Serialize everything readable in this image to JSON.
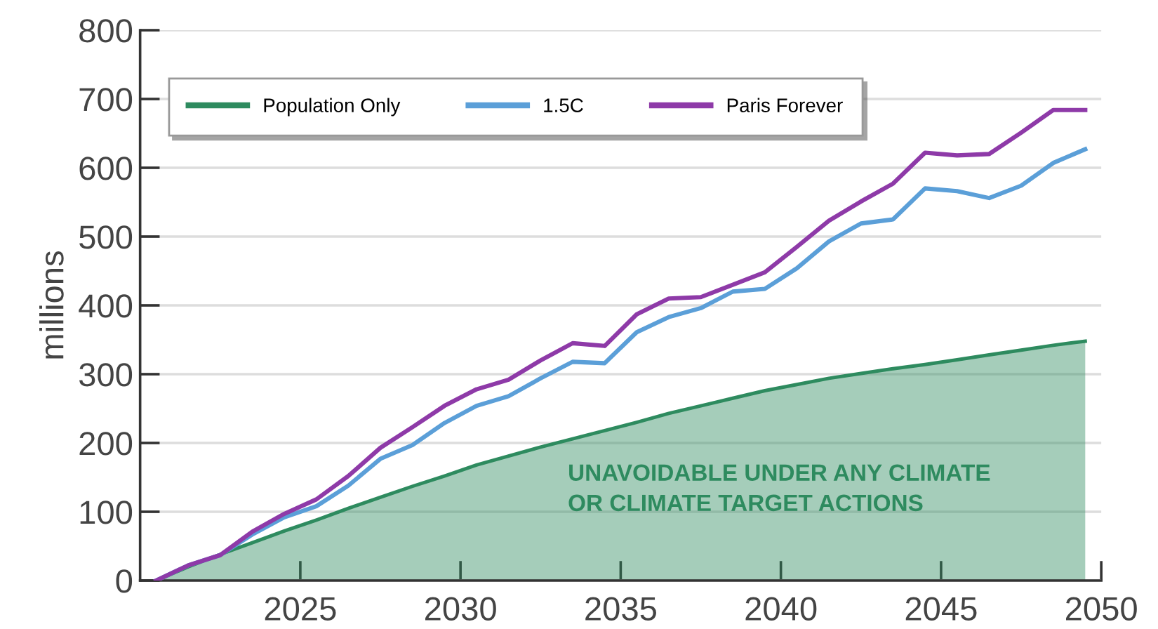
{
  "chart_data": {
    "type": "line",
    "ylabel": "millions",
    "x": [
      2020.5,
      2021.5,
      2022.5,
      2023.5,
      2024.5,
      2025.5,
      2026.5,
      2027.5,
      2028.5,
      2029.5,
      2030.5,
      2031.5,
      2032.5,
      2033.5,
      2034.5,
      2035.5,
      2036.5,
      2037.5,
      2038.5,
      2039.5,
      2040.5,
      2041.5,
      2042.5,
      2043.5,
      2044.5,
      2045.5,
      2046.5,
      2047.5,
      2048.5,
      2049.5
    ],
    "series": [
      {
        "name": "Population Only",
        "type": "area",
        "color": "#2e8b5f",
        "values": [
          0,
          20,
          38,
          55,
          72,
          88,
          105,
          121,
          137,
          152,
          168,
          181,
          194,
          206,
          218,
          230,
          243,
          254,
          265,
          276,
          285,
          294,
          301,
          308,
          314,
          321,
          328,
          335,
          342,
          348
        ]
      },
      {
        "name": "1.5C",
        "color": "#5b9fd8",
        "values": [
          0,
          22,
          37,
          67,
          92,
          108,
          138,
          177,
          197,
          229,
          254,
          268,
          294,
          318,
          316,
          361,
          383,
          396,
          420,
          424,
          454,
          493,
          519,
          525,
          570,
          566,
          556,
          574,
          607,
          627
        ]
      },
      {
        "name": "Paris Forever",
        "color": "#8e3aa8",
        "values": [
          0,
          22,
          37,
          71,
          97,
          118,
          152,
          193,
          223,
          254,
          278,
          292,
          320,
          345,
          341,
          387,
          410,
          412,
          430,
          448,
          485,
          523,
          551,
          577,
          622,
          618,
          620,
          651,
          684,
          684
        ]
      }
    ],
    "xlim": [
      2020,
      2050
    ],
    "xticks": [
      2025,
      2030,
      2035,
      2040,
      2045,
      2050
    ],
    "ylim": [
      0,
      800
    ],
    "yticks": [
      0,
      100,
      200,
      300,
      400,
      500,
      600,
      700,
      800
    ],
    "grid": "y",
    "legend": "top left",
    "annotations": [
      "UNAVOIDABLE UNDER ANY CLIMATE\nOR CLIMATE TARGET ACTIONS"
    ]
  }
}
